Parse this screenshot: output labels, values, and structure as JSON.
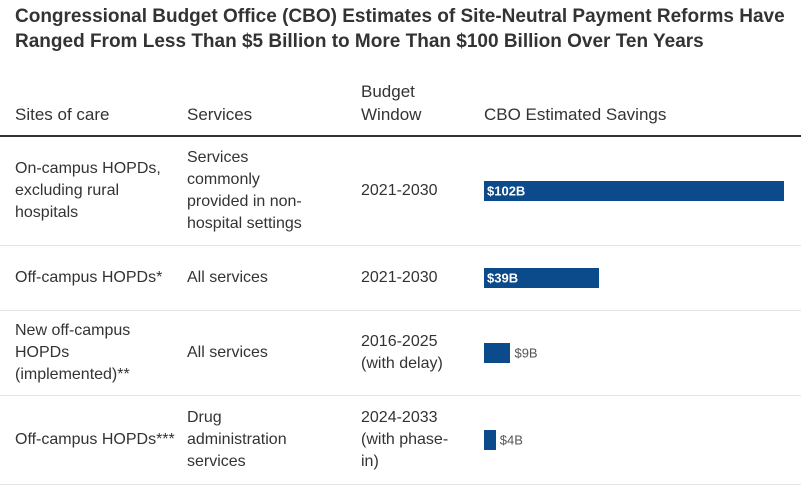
{
  "chart_data": {
    "type": "bar",
    "title": "Congressional Budget Office (CBO) Estimates of Site-Neutral Payment Reforms Have Ranged From Less Than $5 Billion to More Than $100 Billion Over Ten Years",
    "columns": [
      "Sites of care",
      "Services",
      "Budget Window",
      "CBO Estimated Savings"
    ],
    "categories": [
      "On-campus HOPDs, excluding rural hospitals",
      "Off-campus HOPDs*",
      "New off-campus HOPDs (implemented)**",
      "Off-campus HOPDs***"
    ],
    "services": [
      "Services commonly provided in non-hospital settings",
      "All services",
      "All services",
      "Drug administration services"
    ],
    "windows": [
      "2021-2030",
      "2021-2030",
      "2016-2025 (with delay)",
      "2024-2033 (with phase-in)"
    ],
    "values": [
      102,
      39,
      9,
      4
    ],
    "value_labels": [
      "$102B",
      "$39B",
      "$9B",
      "$4B"
    ],
    "color": "#0b4a8b"
  }
}
